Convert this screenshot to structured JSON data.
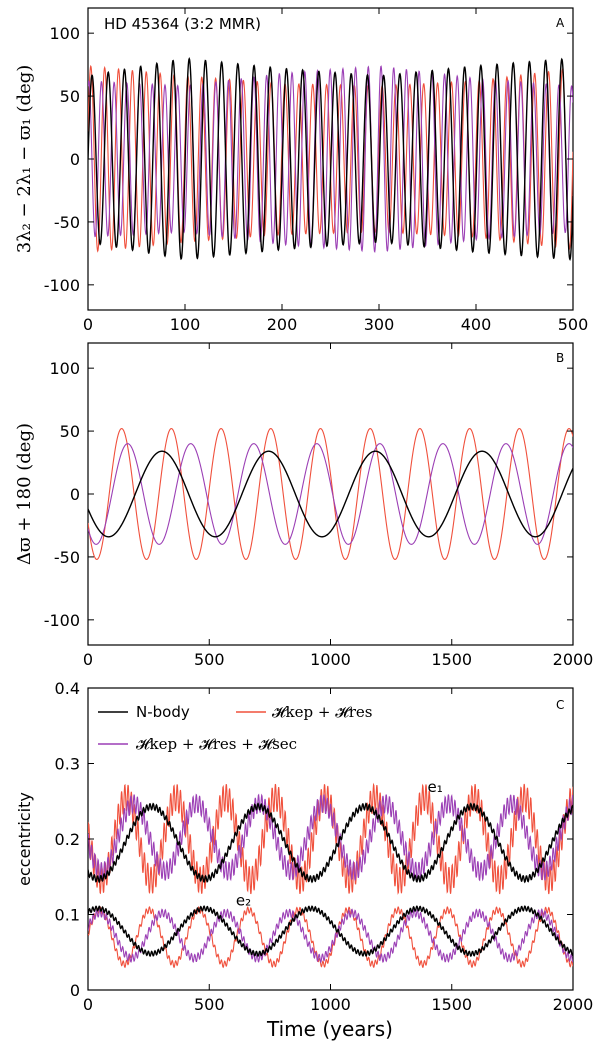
{
  "colors": {
    "nbody": "#000000",
    "kep_res": "#f0503c",
    "kep_res_sec": "#9b3fb5"
  },
  "chart_data": [
    {
      "id": "A",
      "type": "line",
      "panel_letter": "A",
      "annotation": "HD 45364 (3:2 MMR)",
      "ylabel": "3λ₂ − 2λ₁ − ϖ₁  (deg)",
      "xlabel": "",
      "xlim": [
        0,
        500
      ],
      "ylim": [
        -120,
        120
      ],
      "xticks": [
        "0",
        "100",
        "200",
        "300",
        "400",
        "500"
      ],
      "xtick_values": [
        0,
        100,
        200,
        300,
        400,
        500
      ],
      "yticks": [
        "100",
        "50",
        "0",
        "-50",
        "-100"
      ],
      "ytick_values": [
        100,
        50,
        0,
        -50,
        -100
      ],
      "series": [
        {
          "key": "kep_res",
          "center": 0,
          "amplitude": [
            74,
            66,
            60,
            58,
            62,
            72
          ],
          "period": 14.3,
          "phase": 0.3
        },
        {
          "key": "kep_res_sec",
          "center": 0,
          "amplitude": [
            62,
            58,
            68,
            74,
            64,
            58
          ],
          "period": 13.1,
          "phase": 1.2
        },
        {
          "key": "nbody",
          "center": 0,
          "amplitude": [
            66,
            80,
            72,
            66,
            74,
            80
          ],
          "period": 16.7,
          "phase": 0.0
        }
      ]
    },
    {
      "id": "B",
      "type": "line",
      "panel_letter": "B",
      "ylabel": "Δϖ + 180  (deg)",
      "xlabel": "",
      "xlim": [
        0,
        2000
      ],
      "ylim": [
        -120,
        120
      ],
      "xticks": [
        "0",
        "500",
        "1000",
        "1500",
        "2000"
      ],
      "xtick_values": [
        0,
        500,
        1000,
        1500,
        2000
      ],
      "yticks": [
        "100",
        "50",
        "0",
        "-50",
        "-100"
      ],
      "ytick_values": [
        100,
        50,
        0,
        -50,
        -100
      ],
      "series": [
        {
          "key": "kep_res",
          "center": 0,
          "amplitude": [
            52
          ],
          "period": 205,
          "phase": 3.6
        },
        {
          "key": "kep_res_sec",
          "center": 0,
          "amplitude": [
            40
          ],
          "period": 260,
          "phase": 3.9
        },
        {
          "key": "nbody",
          "center": 0,
          "amplitude": [
            34
          ],
          "period": 440,
          "phase": 3.5
        }
      ]
    },
    {
      "id": "C",
      "type": "line",
      "panel_letter": "C",
      "ylabel": "eccentricity",
      "xlabel": "Time (years)",
      "xlim": [
        0,
        2000
      ],
      "ylim": [
        0,
        0.4
      ],
      "xticks": [
        "0",
        "500",
        "1000",
        "1500",
        "2000"
      ],
      "xtick_values": [
        0,
        500,
        1000,
        1500,
        2000
      ],
      "yticks": [
        "0.4",
        "0.3",
        "0.2",
        "0.1",
        "0"
      ],
      "ytick_values": [
        0.4,
        0.3,
        0.2,
        0.1,
        0
      ],
      "legend": [
        {
          "key": "nbody",
          "label": "N-body"
        },
        {
          "key": "kep_res",
          "label": "𝓗kep + 𝓗res"
        },
        {
          "key": "kep_res_sec",
          "label": "𝓗kep + 𝓗res + 𝓗sec"
        }
      ],
      "labels": {
        "e1": "e₁",
        "e2": "e₂"
      },
      "label_positions": {
        "e1": [
          1400,
          0.262
        ],
        "e2": [
          610,
          0.112
        ]
      },
      "series": [
        {
          "key": "kep_res",
          "group": "e1",
          "center": 0.2,
          "amplitude": [
            0.055
          ],
          "period": 205,
          "phase": 3.0,
          "ripple": 0.018
        },
        {
          "key": "kep_res_sec",
          "group": "e1",
          "center": 0.202,
          "amplitude": [
            0.045
          ],
          "period": 260,
          "phase": 3.3,
          "ripple": 0.012
        },
        {
          "key": "nbody",
          "group": "e1",
          "center": 0.195,
          "amplitude": [
            0.048
          ],
          "period": 440,
          "phase": 4.1,
          "ripple": 0.004
        },
        {
          "key": "kep_res",
          "group": "e2",
          "center": 0.07,
          "amplitude": [
            0.036
          ],
          "period": 205,
          "phase": 0.1,
          "ripple": 0.004
        },
        {
          "key": "kep_res_sec",
          "group": "e2",
          "center": 0.072,
          "amplitude": [
            0.03
          ],
          "period": 260,
          "phase": 0.4,
          "ripple": 0.005
        },
        {
          "key": "nbody",
          "group": "e2",
          "center": 0.078,
          "amplitude": [
            0.03
          ],
          "period": 440,
          "phase": 1.0,
          "ripple": 0.003
        }
      ]
    }
  ]
}
